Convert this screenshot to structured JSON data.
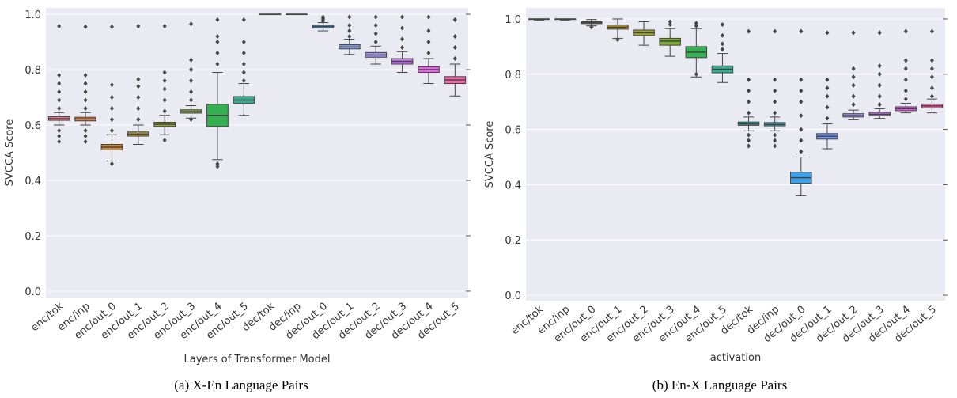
{
  "chart_data": [
    {
      "type": "box",
      "caption": "(a) X-En Language Pairs",
      "xlabel": "Layers of Transformer Model",
      "ylabel": "SVCCA Score",
      "categories": [
        "enc/tok",
        "enc/inp",
        "enc/out_0",
        "enc/out_1",
        "enc/out_2",
        "enc/out_3",
        "enc/out_4",
        "enc/out_5",
        "dec/tok",
        "dec/inp",
        "dec/out_0",
        "dec/out_1",
        "dec/out_2",
        "dec/out_3",
        "dec/out_4",
        "dec/out_5"
      ],
      "colors": [
        "#f77189",
        "#f37932",
        "#d08c32",
        "#b79a31",
        "#9ca331",
        "#7aaa31",
        "#33b04f",
        "#34ae90",
        "#36ada4",
        "#37aab8",
        "#3ba3ec",
        "#7f9df4",
        "#a48cf4",
        "#cc7af4",
        "#f45cf2",
        "#f565aa"
      ],
      "boxes": [
        {
          "whislo": 0.6,
          "q1": 0.617,
          "median": 0.623,
          "q3": 0.63,
          "whishi": 0.645,
          "outliers": [
            0.54,
            0.56,
            0.58,
            0.66,
            0.69,
            0.72,
            0.75,
            0.78,
            0.957
          ]
        },
        {
          "whislo": 0.6,
          "q1": 0.615,
          "median": 0.622,
          "q3": 0.628,
          "whishi": 0.645,
          "outliers": [
            0.54,
            0.56,
            0.58,
            0.66,
            0.69,
            0.72,
            0.75,
            0.78,
            0.955
          ]
        },
        {
          "whislo": 0.47,
          "q1": 0.51,
          "median": 0.52,
          "q3": 0.53,
          "whishi": 0.565,
          "outliers": [
            0.46,
            0.58,
            0.62,
            0.66,
            0.7,
            0.745,
            0.955
          ]
        },
        {
          "whislo": 0.53,
          "q1": 0.56,
          "median": 0.567,
          "q3": 0.575,
          "whishi": 0.6,
          "outliers": [
            0.62,
            0.66,
            0.7,
            0.74,
            0.765,
            0.957
          ]
        },
        {
          "whislo": 0.565,
          "q1": 0.595,
          "median": 0.603,
          "q3": 0.61,
          "whishi": 0.635,
          "outliers": [
            0.545,
            0.65,
            0.69,
            0.73,
            0.76,
            0.79,
            0.957
          ]
        },
        {
          "whislo": 0.625,
          "q1": 0.643,
          "median": 0.648,
          "q3": 0.655,
          "whishi": 0.67,
          "outliers": [
            0.62,
            0.69,
            0.72,
            0.76,
            0.8,
            0.835,
            0.965
          ]
        },
        {
          "whislo": 0.475,
          "q1": 0.595,
          "median": 0.635,
          "q3": 0.675,
          "whishi": 0.79,
          "outliers": [
            0.45,
            0.46,
            0.82,
            0.86,
            0.9,
            0.92,
            0.98
          ]
        },
        {
          "whislo": 0.635,
          "q1": 0.678,
          "median": 0.69,
          "q3": 0.703,
          "whishi": 0.75,
          "outliers": [
            0.76,
            0.79,
            0.82,
            0.86,
            0.9,
            0.98
          ]
        },
        {
          "whislo": 1.0,
          "q1": 1.0,
          "median": 1.0,
          "q3": 1.0,
          "whishi": 1.0,
          "outliers": []
        },
        {
          "whislo": 1.0,
          "q1": 1.0,
          "median": 1.0,
          "q3": 1.0,
          "whishi": 1.0,
          "outliers": []
        },
        {
          "whislo": 0.94,
          "q1": 0.95,
          "median": 0.955,
          "q3": 0.96,
          "whishi": 0.97,
          "outliers": [
            0.975,
            0.98,
            0.985,
            0.99
          ]
        },
        {
          "whislo": 0.855,
          "q1": 0.875,
          "median": 0.882,
          "q3": 0.89,
          "whishi": 0.91,
          "outliers": [
            0.92,
            0.94,
            0.96,
            0.99
          ]
        },
        {
          "whislo": 0.82,
          "q1": 0.845,
          "median": 0.853,
          "q3": 0.862,
          "whishi": 0.885,
          "outliers": [
            0.9,
            0.93,
            0.96,
            0.99
          ]
        },
        {
          "whislo": 0.79,
          "q1": 0.82,
          "median": 0.83,
          "q3": 0.84,
          "whishi": 0.865,
          "outliers": [
            0.88,
            0.91,
            0.95,
            0.99
          ]
        },
        {
          "whislo": 0.75,
          "q1": 0.79,
          "median": 0.8,
          "q3": 0.81,
          "whishi": 0.84,
          "outliers": [
            0.86,
            0.9,
            0.94,
            0.99
          ]
        },
        {
          "whislo": 0.705,
          "q1": 0.75,
          "median": 0.763,
          "q3": 0.775,
          "whishi": 0.82,
          "outliers": [
            0.84,
            0.88,
            0.92,
            0.98
          ]
        }
      ],
      "ylim": [
        -0.023,
        1.023
      ],
      "yticks": [
        {
          "value": 0,
          "label": "0.0"
        },
        0.2,
        0.4,
        0.6,
        0.8,
        {
          "value": 1,
          "label": "1.0"
        }
      ],
      "grid": true
    },
    {
      "type": "box",
      "caption": "(b) En-X Language Pairs",
      "xlabel": "activation",
      "ylabel": "SVCCA Score",
      "categories": [
        "enc/tok",
        "enc/inp",
        "enc/out_0",
        "enc/out_1",
        "enc/out_2",
        "enc/out_3",
        "enc/out_4",
        "enc/out_5",
        "dec/tok",
        "dec/inp",
        "dec/out_0",
        "dec/out_1",
        "dec/out_2",
        "dec/out_3",
        "dec/out_4",
        "dec/out_5"
      ],
      "colors": [
        "#f77189",
        "#f37932",
        "#d08c32",
        "#b79a31",
        "#9ca331",
        "#7aaa31",
        "#33b04f",
        "#34ae90",
        "#36ada4",
        "#37aab8",
        "#3ba3ec",
        "#7f9df4",
        "#a48cf4",
        "#cc7af4",
        "#f45cf2",
        "#f565aa"
      ],
      "boxes": [
        {
          "whislo": 0.995,
          "q1": 0.998,
          "median": 1.0,
          "q3": 1.0,
          "whishi": 1.0,
          "outliers": []
        },
        {
          "whislo": 0.995,
          "q1": 0.998,
          "median": 1.0,
          "q3": 1.0,
          "whishi": 1.0,
          "outliers": []
        },
        {
          "whislo": 0.975,
          "q1": 0.983,
          "median": 0.987,
          "q3": 0.99,
          "whishi": 0.998,
          "outliers": [
            0.97
          ]
        },
        {
          "whislo": 0.93,
          "q1": 0.963,
          "median": 0.97,
          "q3": 0.978,
          "whishi": 1.0,
          "outliers": [
            0.925
          ]
        },
        {
          "whislo": 0.905,
          "q1": 0.94,
          "median": 0.95,
          "q3": 0.96,
          "whishi": 0.99,
          "outliers": []
        },
        {
          "whislo": 0.865,
          "q1": 0.905,
          "median": 0.92,
          "q3": 0.93,
          "whishi": 0.965,
          "outliers": [
            0.98,
            0.99
          ]
        },
        {
          "whislo": 0.79,
          "q1": 0.86,
          "median": 0.88,
          "q3": 0.9,
          "whishi": 0.965,
          "outliers": [
            0.8,
            0.975,
            0.985
          ]
        },
        {
          "whislo": 0.77,
          "q1": 0.805,
          "median": 0.818,
          "q3": 0.83,
          "whishi": 0.875,
          "outliers": [
            0.89,
            0.91,
            0.94,
            0.98
          ]
        },
        {
          "whislo": 0.595,
          "q1": 0.615,
          "median": 0.62,
          "q3": 0.627,
          "whishi": 0.645,
          "outliers": [
            0.54,
            0.56,
            0.58,
            0.66,
            0.7,
            0.74,
            0.78,
            0.955
          ]
        },
        {
          "whislo": 0.595,
          "q1": 0.613,
          "median": 0.618,
          "q3": 0.625,
          "whishi": 0.645,
          "outliers": [
            0.54,
            0.56,
            0.58,
            0.66,
            0.7,
            0.74,
            0.78,
            0.955
          ]
        },
        {
          "whislo": 0.36,
          "q1": 0.405,
          "median": 0.425,
          "q3": 0.445,
          "whishi": 0.5,
          "outliers": [
            0.52,
            0.56,
            0.6,
            0.65,
            0.7,
            0.74,
            0.78,
            0.955
          ]
        },
        {
          "whislo": 0.53,
          "q1": 0.565,
          "median": 0.575,
          "q3": 0.585,
          "whishi": 0.62,
          "outliers": [
            0.64,
            0.68,
            0.72,
            0.75,
            0.78,
            0.95
          ]
        },
        {
          "whislo": 0.635,
          "q1": 0.645,
          "median": 0.65,
          "q3": 0.657,
          "whishi": 0.67,
          "outliers": [
            0.69,
            0.72,
            0.76,
            0.79,
            0.82,
            0.95
          ]
        },
        {
          "whislo": 0.64,
          "q1": 0.65,
          "median": 0.655,
          "q3": 0.662,
          "whishi": 0.675,
          "outliers": [
            0.69,
            0.72,
            0.76,
            0.8,
            0.83,
            0.95
          ]
        },
        {
          "whislo": 0.66,
          "q1": 0.668,
          "median": 0.675,
          "q3": 0.682,
          "whishi": 0.695,
          "outliers": [
            0.71,
            0.74,
            0.78,
            0.82,
            0.85,
            0.955
          ]
        },
        {
          "whislo": 0.66,
          "q1": 0.678,
          "median": 0.685,
          "q3": 0.692,
          "whishi": 0.71,
          "outliers": [
            0.72,
            0.75,
            0.79,
            0.82,
            0.85,
            0.955
          ]
        }
      ],
      "ylim": [
        -0.02,
        1.04
      ],
      "yticks": [
        {
          "value": 0,
          "label": "0.0"
        },
        0.2,
        0.4,
        0.6,
        0.8,
        {
          "value": 1,
          "label": "1.0"
        }
      ],
      "grid": true
    }
  ]
}
